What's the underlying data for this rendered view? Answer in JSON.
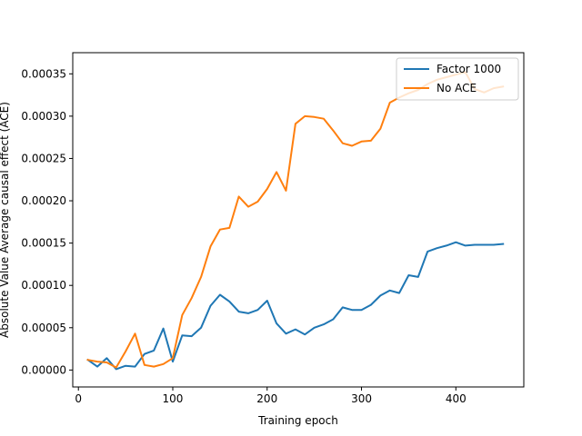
{
  "chart_data": {
    "type": "line",
    "title": "",
    "xlabel": "Training epoch",
    "ylabel": "Absolute Value Average causal effect (ACE)",
    "xlim": [
      -6,
      472
    ],
    "ylim": [
      -2e-05,
      0.000375
    ],
    "xticks": [
      0,
      100,
      200,
      300,
      400
    ],
    "yticks": [
      0.0,
      5e-05,
      0.0001,
      0.00015,
      0.0002,
      0.00025,
      0.0003,
      0.00035
    ],
    "xtick_labels": [
      "0",
      "100",
      "200",
      "300",
      "400"
    ],
    "ytick_labels": [
      "0.00000",
      "0.00005",
      "0.00010",
      "0.00015",
      "0.00020",
      "0.00025",
      "0.00030",
      "0.00035"
    ],
    "grid": false,
    "legend_position": "top-right",
    "series": [
      {
        "name": "Factor 1000",
        "color": "#1f77b4",
        "x": [
          10,
          20,
          30,
          40,
          50,
          60,
          70,
          80,
          90,
          100,
          110,
          120,
          130,
          140,
          150,
          160,
          170,
          180,
          190,
          200,
          210,
          220,
          230,
          240,
          250,
          260,
          270,
          280,
          290,
          300,
          310,
          320,
          330,
          340,
          350,
          360,
          370,
          380,
          390,
          400,
          410,
          420,
          430,
          440,
          450
        ],
        "y": [
          1.2e-05,
          4e-06,
          1.4e-05,
          1e-06,
          5e-06,
          4e-06,
          1.9e-05,
          2.3e-05,
          4.9e-05,
          1e-05,
          4.1e-05,
          4e-05,
          5e-05,
          7.6e-05,
          8.9e-05,
          8.1e-05,
          6.9e-05,
          6.7e-05,
          7.1e-05,
          8.2e-05,
          5.5e-05,
          4.3e-05,
          4.8e-05,
          4.2e-05,
          5e-05,
          5.4e-05,
          6e-05,
          7.4e-05,
          7.1e-05,
          7.1e-05,
          7.7e-05,
          8.8e-05,
          9.4e-05,
          9.1e-05,
          0.000112,
          0.00011,
          0.00014,
          0.000144,
          0.000147,
          0.000151,
          0.000147,
          0.000148,
          0.000148,
          0.000148,
          0.000149
        ]
      },
      {
        "name": "No ACE",
        "color": "#ff7f0e",
        "x": [
          10,
          20,
          30,
          40,
          50,
          60,
          70,
          80,
          90,
          100,
          110,
          120,
          130,
          140,
          150,
          160,
          170,
          180,
          190,
          200,
          210,
          220,
          230,
          240,
          250,
          260,
          270,
          280,
          290,
          300,
          310,
          320,
          330,
          340,
          350,
          360,
          370,
          380,
          390,
          400,
          410,
          420,
          430,
          440,
          450
        ],
        "y": [
          1.2e-05,
          1e-05,
          9e-06,
          3e-06,
          2.2e-05,
          4.3e-05,
          6e-06,
          4e-06,
          7e-06,
          1.4e-05,
          6.5e-05,
          8.5e-05,
          0.00011,
          0.000146,
          0.000166,
          0.000168,
          0.000205,
          0.000193,
          0.000199,
          0.000214,
          0.000234,
          0.000212,
          0.000291,
          0.0003,
          0.000299,
          0.000297,
          0.000283,
          0.000268,
          0.000265,
          0.00027,
          0.000271,
          0.000285,
          0.000316,
          0.000322,
          0.000327,
          0.000331,
          0.000338,
          0.000343,
          0.000346,
          0.000349,
          0.000352,
          0.000332,
          0.000328,
          0.000333,
          0.000335
        ]
      }
    ]
  }
}
